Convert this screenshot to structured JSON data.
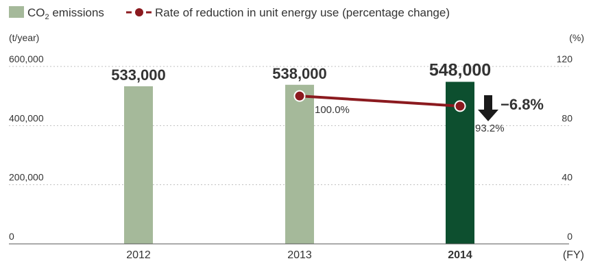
{
  "chart_data": {
    "type": "bar+line",
    "categories": [
      "2012",
      "2013",
      "2014"
    ],
    "x_unit": "(FY)",
    "bars": {
      "name": "CO2 emissions",
      "name_main": "CO",
      "name_sub": "2",
      "name_rest": " emissions",
      "unit": "(t/year)",
      "values": [
        533000,
        538000,
        548000
      ],
      "labels": [
        "533,000",
        "538,000",
        "548,000"
      ],
      "ylim": [
        0,
        600000
      ],
      "ticks": [
        "0",
        "200,000",
        "400,000",
        "600,000"
      ],
      "tick_values": [
        0,
        200000,
        400000,
        600000
      ],
      "colors": [
        "#a5b99a",
        "#a5b99a",
        "#0d4f2f"
      ]
    },
    "line": {
      "name": "Rate of reduction in unit energy use (percentage change)",
      "unit": "(%)",
      "x": [
        "2013",
        "2014"
      ],
      "values": [
        100.0,
        93.2
      ],
      "labels": [
        "100.0%",
        "93.2%"
      ],
      "ylim": [
        0,
        120
      ],
      "ticks": [
        "0",
        "40",
        "80",
        "120"
      ],
      "tick_values": [
        0,
        40,
        80,
        120
      ],
      "color": "#8b1a1f"
    },
    "annotation": {
      "text": "−6.8%",
      "arrow": "down-arrow-icon"
    },
    "grid": "dotted horizontal"
  }
}
